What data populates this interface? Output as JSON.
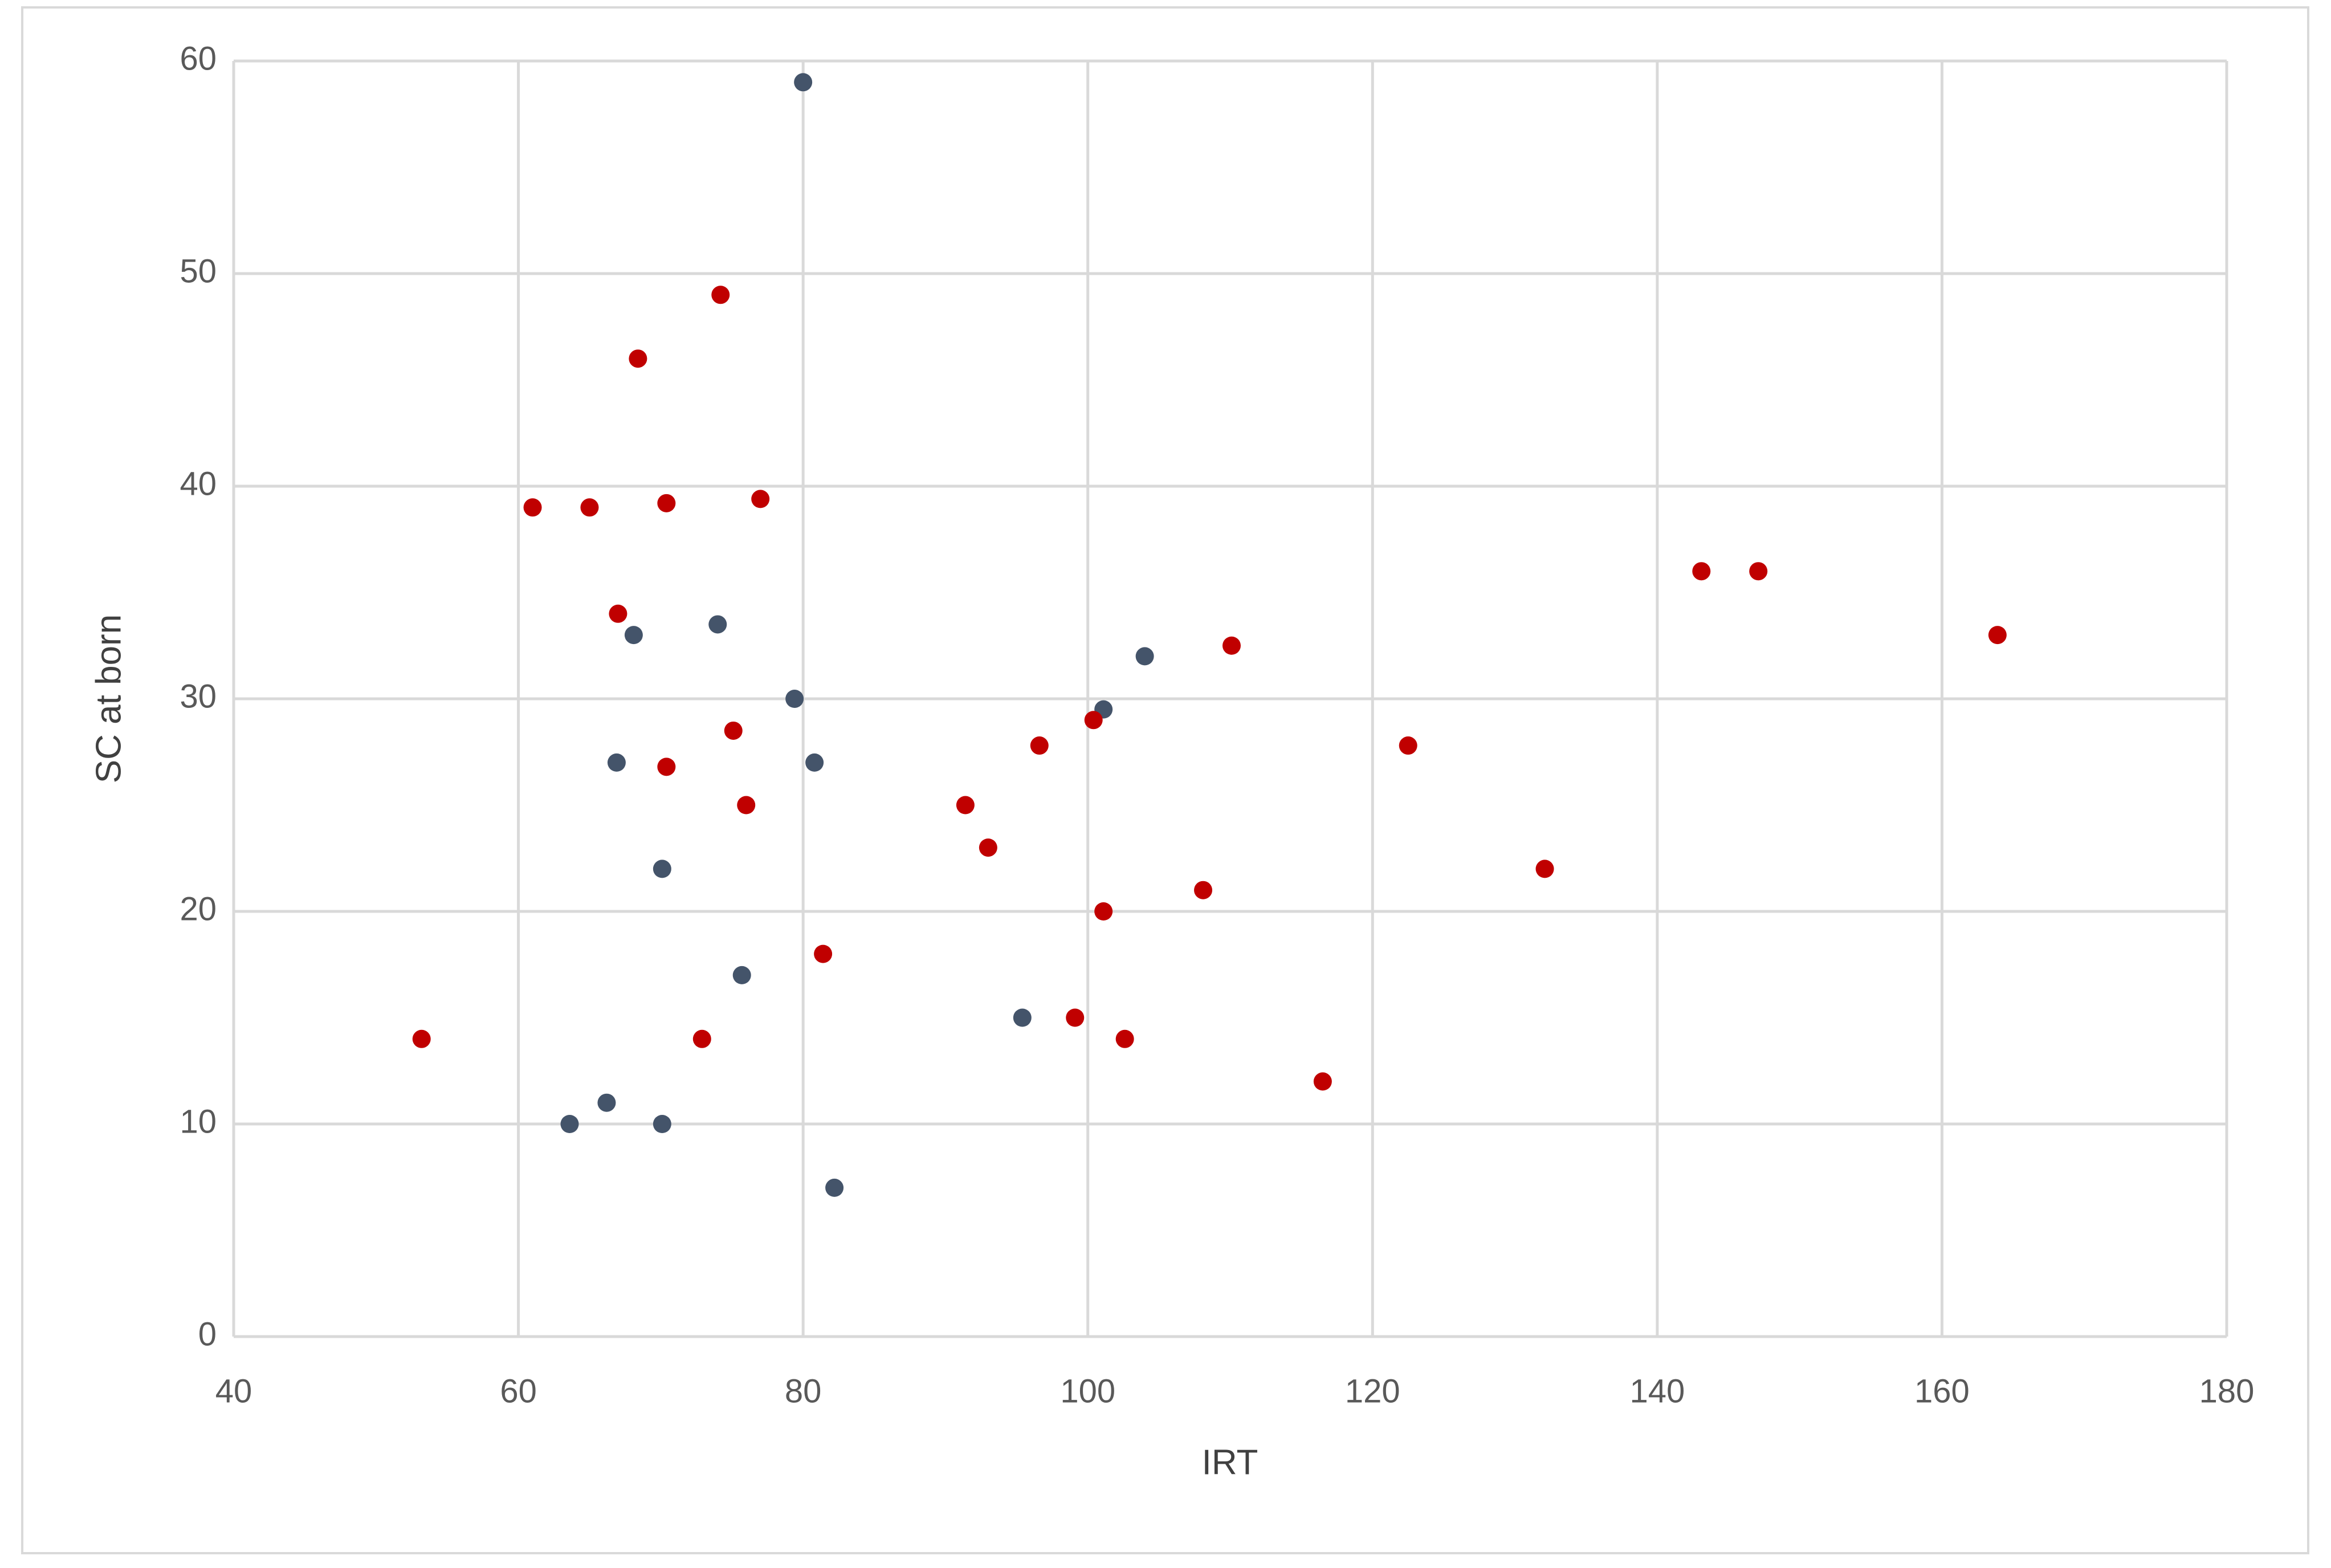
{
  "chart_data": {
    "type": "scatter",
    "x_label": "IRT",
    "y_label": "SC at born",
    "xlim": [
      40,
      180
    ],
    "xticks": [
      40,
      60,
      80,
      100,
      120,
      140,
      160,
      180
    ],
    "ylim": [
      0,
      60
    ],
    "yticks": [
      0,
      10,
      20,
      30,
      40,
      50,
      60
    ],
    "grid": true,
    "series": [
      {
        "color": "#44546a",
        "x": [
          80.0,
          68.1,
          74.0,
          79.4,
          80.8,
          66.9,
          70.1,
          75.7,
          63.6,
          66.2,
          70.1,
          82.2,
          95.4,
          101.1,
          104.0
        ],
        "values": [
          59,
          33,
          33.5,
          30,
          27,
          27,
          22,
          17,
          10,
          11,
          10,
          7,
          15,
          29.5,
          32
        ]
      },
      {
        "color": "#c00000",
        "x": [
          53.2,
          61.0,
          65.0,
          67.0,
          68.4,
          70.4,
          70.4,
          74.2,
          77.0,
          75.1,
          76.0,
          72.9,
          81.4,
          91.4,
          93.0,
          96.6,
          99.1,
          100.4,
          101.1,
          102.6,
          108.1,
          110.1,
          116.5,
          122.5,
          132.1,
          143.1,
          147.1,
          163.9
        ],
        "values": [
          14,
          39,
          39,
          34,
          46,
          39.2,
          26.8,
          49,
          39.4,
          28.5,
          25,
          14,
          18,
          25,
          23,
          27.8,
          15,
          29,
          20,
          14,
          21,
          32.5,
          12,
          27.8,
          22,
          36,
          36,
          33
        ]
      }
    ]
  }
}
